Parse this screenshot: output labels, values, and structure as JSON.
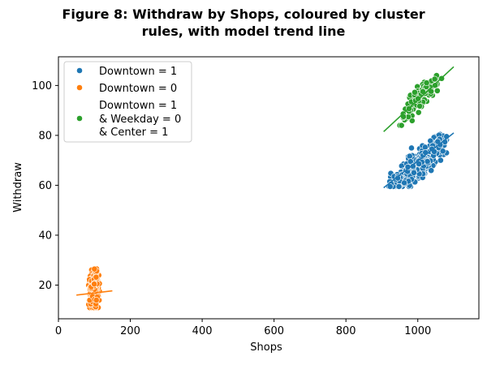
{
  "chart_data": {
    "type": "scatter",
    "title_lines": [
      "Figure 8: Withdraw by Shops, coloured by cluster",
      "rules, with model trend line"
    ],
    "xlabel": "Shops",
    "ylabel": "Withdraw",
    "xlim": [
      0,
      1170
    ],
    "ylim": [
      6.5,
      111.5
    ],
    "xticks": [
      0,
      200,
      400,
      600,
      800,
      1000
    ],
    "yticks": [
      20,
      40,
      60,
      80,
      100
    ],
    "legend_position": "top-left",
    "grid": false,
    "series": [
      {
        "name": "Downtown = 1",
        "color": "#1f77b4",
        "clusters": [
          {
            "cx": 1000,
            "cy": 68,
            "sx": 35,
            "sy": 5,
            "corr": 0.85,
            "n": 520,
            "xmin": 920,
            "xmax": 1080,
            "ymin": 59.5,
            "ymax": 84.5
          }
        ],
        "trend": {
          "x": [
            905,
            1100
          ],
          "y": [
            59,
            81
          ]
        }
      },
      {
        "name": "Downtown = 0",
        "color": "#ff7f0e",
        "clusters": [
          {
            "cx": 98,
            "cy": 18,
            "sx": 6,
            "sy": 4,
            "corr": 0.1,
            "n": 300,
            "xmin": 82,
            "xmax": 114,
            "ymin": 11,
            "ymax": 26.5
          }
        ],
        "trend": {
          "x": [
            50,
            150
          ],
          "y": [
            16,
            17.7
          ]
        }
      },
      {
        "name": "Downtown = 1\n& Weekday = 0\n& Center = 1",
        "legend_lines": [
          "Downtown = 1",
          "& Weekday = 0",
          "& Center = 1"
        ],
        "color": "#2ca02c",
        "clusters": [
          {
            "cx": 1005,
            "cy": 95,
            "sx": 28,
            "sy": 4.5,
            "corr": 0.85,
            "n": 110,
            "xmin": 950,
            "xmax": 1070,
            "ymin": 84,
            "ymax": 104
          }
        ],
        "trend": {
          "x": [
            905,
            1100
          ],
          "y": [
            81.5,
            107.5
          ]
        }
      }
    ]
  }
}
